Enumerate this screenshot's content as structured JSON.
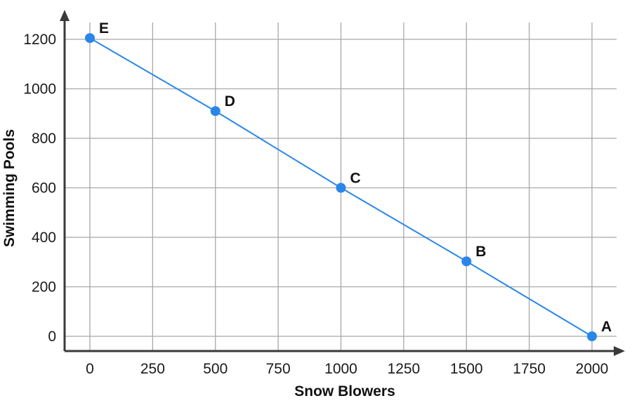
{
  "chart_data": {
    "type": "line",
    "title": "",
    "xlabel": "Snow Blowers",
    "ylabel": "Swimming Pools",
    "xlim": [
      0,
      2000
    ],
    "ylim": [
      0,
      1200
    ],
    "x_ticks": [
      0,
      250,
      500,
      750,
      1000,
      1250,
      1500,
      1750,
      2000
    ],
    "y_ticks": [
      0,
      200,
      400,
      600,
      800,
      1000,
      1200
    ],
    "grid": true,
    "legend": "none",
    "series": [
      {
        "color": "#2a86e8",
        "points": [
          {
            "label": "E",
            "x": 0,
            "y": 1205
          },
          {
            "label": "D",
            "x": 500,
            "y": 910
          },
          {
            "label": "C",
            "x": 1000,
            "y": 600
          },
          {
            "label": "B",
            "x": 1500,
            "y": 303
          },
          {
            "label": "A",
            "x": 2000,
            "y": 0
          }
        ]
      }
    ]
  }
}
